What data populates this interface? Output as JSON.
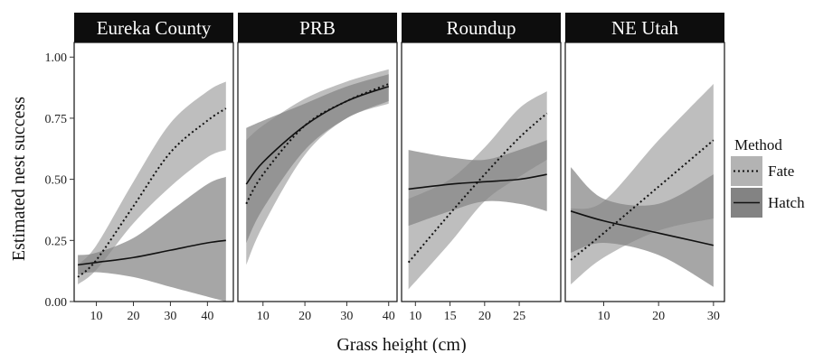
{
  "chart_data": {
    "type": "line",
    "xlabel": "Grass height (cm)",
    "ylabel": "Estimated nest success",
    "ylim": [
      0,
      1.06
    ],
    "y_ticks": [
      0.0,
      0.25,
      0.5,
      0.75,
      1.0
    ],
    "y_tick_labels": [
      "0.00",
      "0.25",
      "0.50",
      "0.75",
      "1.00"
    ],
    "legend": {
      "title": "Method",
      "placement": "right",
      "entries": [
        {
          "label": "Fate",
          "line": "dotted",
          "band": "#b3b3b3"
        },
        {
          "label": "Hatch",
          "line": "solid",
          "band": "#838383"
        }
      ]
    },
    "panels": [
      {
        "name": "Eureka County",
        "xlim": [
          4,
          47
        ],
        "x_ticks": [
          10,
          20,
          30,
          40
        ],
        "series": [
          {
            "name": "Fate",
            "x": [
              5,
              10,
              20,
              30,
              40,
              45
            ],
            "y": [
              0.1,
              0.17,
              0.39,
              0.61,
              0.74,
              0.79
            ],
            "lower": [
              0.07,
              0.13,
              0.32,
              0.47,
              0.59,
              0.62
            ],
            "upper": [
              0.15,
              0.23,
              0.49,
              0.73,
              0.86,
              0.9
            ]
          },
          {
            "name": "Hatch",
            "x": [
              5,
              10,
              20,
              30,
              40,
              45
            ],
            "y": [
              0.15,
              0.16,
              0.18,
              0.21,
              0.24,
              0.25
            ],
            "lower": [
              0.11,
              0.12,
              0.1,
              0.06,
              0.02,
              0.0
            ],
            "upper": [
              0.19,
              0.2,
              0.26,
              0.37,
              0.48,
              0.51
            ]
          }
        ]
      },
      {
        "name": "PRB",
        "xlim": [
          4,
          42
        ],
        "x_ticks": [
          10,
          20,
          30,
          40
        ],
        "series": [
          {
            "name": "Fate",
            "x": [
              6,
              10,
              20,
              30,
              40
            ],
            "y": [
              0.4,
              0.52,
              0.72,
              0.82,
              0.89
            ],
            "lower": [
              0.15,
              0.31,
              0.6,
              0.75,
              0.81
            ],
            "upper": [
              0.66,
              0.72,
              0.83,
              0.9,
              0.95
            ]
          },
          {
            "name": "Hatch",
            "x": [
              6,
              10,
              20,
              30,
              40
            ],
            "y": [
              0.48,
              0.57,
              0.72,
              0.82,
              0.88
            ],
            "lower": [
              0.24,
              0.38,
              0.62,
              0.75,
              0.82
            ],
            "upper": [
              0.71,
              0.74,
              0.81,
              0.88,
              0.93
            ]
          }
        ]
      },
      {
        "name": "Roundup",
        "xlim": [
          8,
          31
        ],
        "x_ticks": [
          10,
          15,
          20,
          25
        ],
        "series": [
          {
            "name": "Fate",
            "x": [
              9,
              15,
              20,
              25,
              29
            ],
            "y": [
              0.16,
              0.36,
              0.52,
              0.67,
              0.77
            ],
            "lower": [
              0.05,
              0.24,
              0.41,
              0.51,
              0.58
            ],
            "upper": [
              0.42,
              0.5,
              0.63,
              0.79,
              0.86
            ]
          },
          {
            "name": "Hatch",
            "x": [
              9,
              15,
              20,
              25,
              29
            ],
            "y": [
              0.46,
              0.48,
              0.49,
              0.5,
              0.52
            ],
            "lower": [
              0.31,
              0.37,
              0.41,
              0.4,
              0.37
            ],
            "upper": [
              0.62,
              0.59,
              0.58,
              0.62,
              0.66
            ]
          }
        ]
      },
      {
        "name": "NE Utah",
        "xlim": [
          3,
          32
        ],
        "x_ticks": [
          10,
          20,
          30
        ],
        "series": [
          {
            "name": "Fate",
            "x": [
              4,
              10,
              20,
              30
            ],
            "y": [
              0.17,
              0.28,
              0.47,
              0.66
            ],
            "lower": [
              0.07,
              0.18,
              0.29,
              0.34
            ],
            "upper": [
              0.38,
              0.41,
              0.66,
              0.89
            ]
          },
          {
            "name": "Hatch",
            "x": [
              4,
              10,
              20,
              30
            ],
            "y": [
              0.37,
              0.33,
              0.28,
              0.23
            ],
            "lower": [
              0.2,
              0.24,
              0.19,
              0.06
            ],
            "upper": [
              0.55,
              0.42,
              0.4,
              0.52
            ]
          }
        ]
      }
    ]
  }
}
